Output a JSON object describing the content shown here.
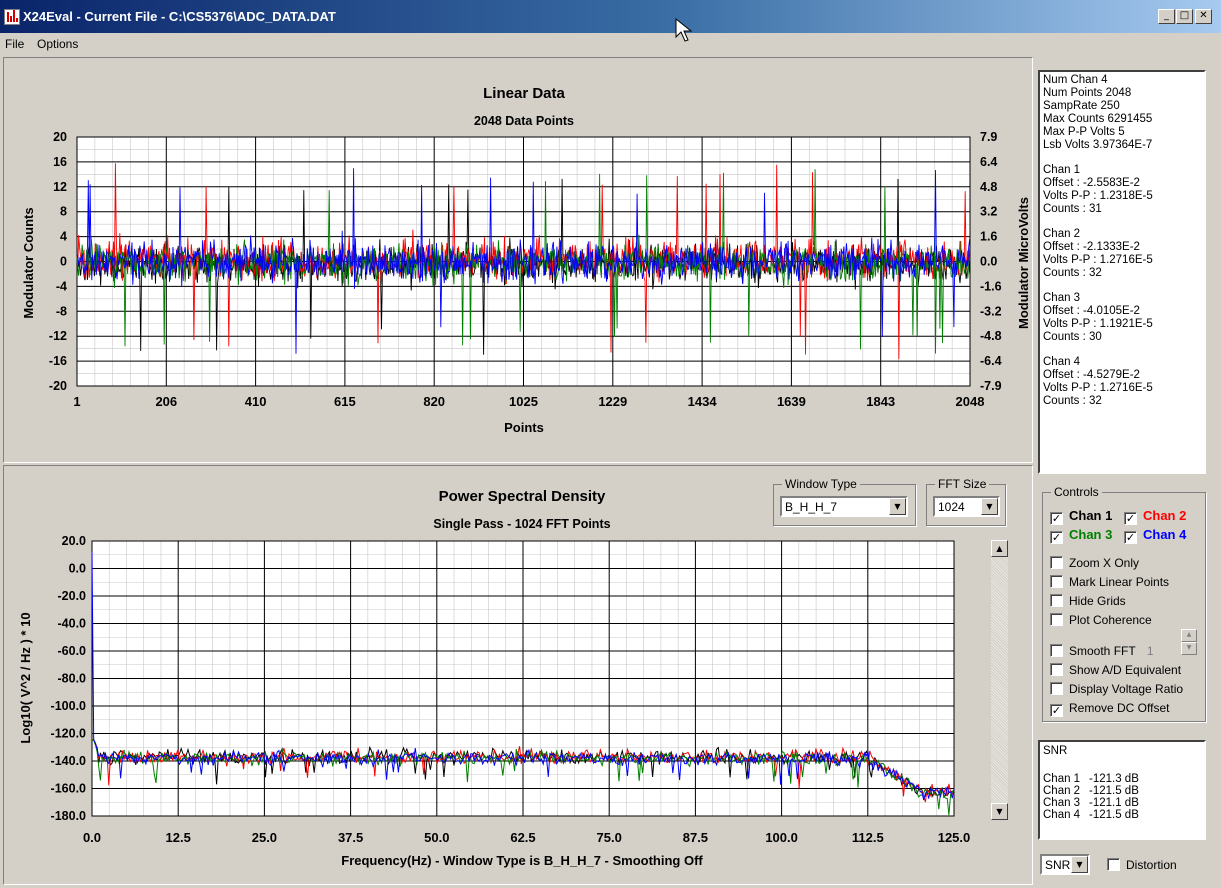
{
  "window": {
    "title": "X24Eval - Current File - C:\\CS5376\\ADC_DATA.DAT",
    "icon": "app-chart-icon"
  },
  "menu": {
    "items": [
      {
        "label": "File"
      },
      {
        "label": "Options"
      }
    ]
  },
  "colors": {
    "chan1": "#000000",
    "chan2": "#ff0000",
    "chan3": "#008000",
    "chan4": "#0000ff",
    "plot_background": "#ffffff",
    "window_background": "#d4d0c8"
  },
  "linear_chart": {
    "title": "Linear Data",
    "subtitle": "2048 Data Points",
    "xlabel": "Points",
    "ylabel_left": "Modulator Counts",
    "ylabel_right": "Modulator MicroVolts",
    "x_ticks": [
      "1",
      "206",
      "410",
      "615",
      "820",
      "1025",
      "1229",
      "1434",
      "1639",
      "1843",
      "2048"
    ],
    "y_ticks_left": [
      "20",
      "16",
      "12",
      "8",
      "4",
      "0",
      "-4",
      "-8",
      "-12",
      "-16",
      "-20"
    ],
    "y_ticks_right": [
      "7.9",
      "6.4",
      "4.8",
      "3.2",
      "1.6",
      "0.0",
      "-1.6",
      "-3.2",
      "-4.8",
      "-6.4",
      "-7.9"
    ]
  },
  "psd_chart": {
    "title": "Power Spectral Density",
    "subtitle": "Single Pass - 1024 FFT Points",
    "xlabel": "Frequency(Hz) - Window Type is B_H_H_7 - Smoothing Off",
    "ylabel": "Log10( V^2 / Hz ) * 10",
    "x_ticks": [
      "0.0",
      "12.5",
      "25.0",
      "37.5",
      "50.0",
      "62.5",
      "75.0",
      "87.5",
      "100.0",
      "112.5",
      "125.0"
    ],
    "y_ticks": [
      "20.0",
      "0.0",
      "-20.0",
      "-40.0",
      "-60.0",
      "-80.0",
      "-100.0",
      "-120.0",
      "-140.0",
      "-160.0",
      "-180.0"
    ]
  },
  "chart_data": [
    {
      "type": "line",
      "title": "Linear Data",
      "subtitle": "2048 Data Points",
      "xlabel": "Points",
      "ylabel": "Modulator Counts",
      "y2label": "Modulator MicroVolts",
      "xlim": [
        1,
        2048
      ],
      "ylim": [
        -20,
        20
      ],
      "y2lim": [
        -7.9,
        7.9
      ],
      "grid": true,
      "series": [
        {
          "name": "Chan 1",
          "color": "#000000",
          "offset": -0.4,
          "spread": 4.0,
          "peak": 15
        },
        {
          "name": "Chan 2",
          "color": "#ff0000",
          "offset": 0.3,
          "spread": 4.0,
          "peak": 16
        },
        {
          "name": "Chan 3",
          "color": "#008000",
          "offset": -0.2,
          "spread": 3.8,
          "peak": 15
        },
        {
          "name": "Chan 4",
          "color": "#0000ff",
          "offset": 0.0,
          "spread": 4.0,
          "peak": 15
        }
      ]
    },
    {
      "type": "line",
      "title": "Power Spectral Density",
      "subtitle": "Single Pass - 1024 FFT Points",
      "xlabel": "Frequency(Hz) - Window Type is B_H_H_7 - Smoothing Off",
      "ylabel": "Log10( V^2 / Hz ) * 10",
      "xlim": [
        0,
        125
      ],
      "ylim": [
        -180,
        20
      ],
      "grid": true,
      "series": [
        {
          "name": "Chan 1",
          "color": "#000000",
          "floor_db": -137,
          "rolloff_hz": 112.5,
          "end_db": -163
        },
        {
          "name": "Chan 2",
          "color": "#ff0000",
          "floor_db": -137,
          "rolloff_hz": 112.5,
          "end_db": -163
        },
        {
          "name": "Chan 3",
          "color": "#008000",
          "floor_db": -138,
          "rolloff_hz": 112.5,
          "end_db": -164
        },
        {
          "name": "Chan 4",
          "color": "#0000ff",
          "floor_db": -138,
          "rolloff_hz": 112.5,
          "end_db": -163,
          "dc_db": 12
        }
      ]
    }
  ],
  "window_type": {
    "label": "Window Type",
    "value": "B_H_H_7"
  },
  "fft_size": {
    "label": "FFT Size",
    "value": "1024"
  },
  "info": {
    "general": [
      "Num Chan 4",
      "Num Points 2048",
      "SampRate 250",
      "Max Counts 6291455",
      "Max P-P Volts 5",
      "Lsb Volts 3.97364E-7"
    ],
    "channels": [
      {
        "name": "Chan 1",
        "offset": "Offset : -2.5583E-2",
        "vpp": "Volts P-P : 1.2318E-5",
        "counts": "Counts : 31"
      },
      {
        "name": "Chan 2",
        "offset": "Offset : -2.1333E-2",
        "vpp": "Volts P-P : 1.2716E-5",
        "counts": "Counts : 32"
      },
      {
        "name": "Chan 3",
        "offset": "Offset : -4.0105E-2",
        "vpp": "Volts P-P : 1.1921E-5",
        "counts": "Counts : 30"
      },
      {
        "name": "Chan 4",
        "offset": "Offset : -4.5279E-2",
        "vpp": "Volts P-P : 1.2716E-5",
        "counts": "Counts : 32"
      }
    ]
  },
  "controls": {
    "label": "Controls",
    "channels": [
      {
        "label": "Chan 1",
        "checked": true,
        "color": "#000000"
      },
      {
        "label": "Chan 2",
        "checked": true,
        "color": "#ff0000"
      },
      {
        "label": "Chan 3",
        "checked": true,
        "color": "#008000"
      },
      {
        "label": "Chan 4",
        "checked": true,
        "color": "#0000ff"
      }
    ],
    "options": [
      {
        "label": "Zoom X Only",
        "checked": false
      },
      {
        "label": "Mark Linear Points",
        "checked": false
      },
      {
        "label": "Hide Grids",
        "checked": false
      },
      {
        "label": "Plot Coherence",
        "checked": false
      },
      {
        "label": "Smooth FFT",
        "checked": false
      },
      {
        "label": "Show A/D Equivalent",
        "checked": false
      },
      {
        "label": "Display Voltage Ratio",
        "checked": false
      },
      {
        "label": "Remove DC Offset",
        "checked": true
      }
    ],
    "smooth_value": "1"
  },
  "snr": {
    "title": "SNR",
    "rows": [
      {
        "chan": "Chan 1",
        "value": "-121.3 dB"
      },
      {
        "chan": "Chan 2",
        "value": "-121.5 dB"
      },
      {
        "chan": "Chan 3",
        "value": "-121.1 dB"
      },
      {
        "chan": "Chan 4",
        "value": "-121.5 dB"
      }
    ]
  },
  "bottom": {
    "mode_value": "SNR",
    "distortion_label": "Distortion",
    "distortion_checked": false
  }
}
